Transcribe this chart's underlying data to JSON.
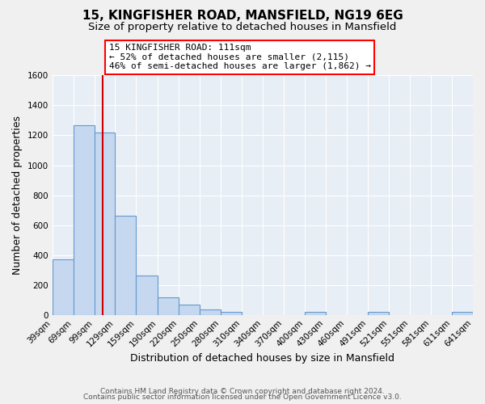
{
  "title": "15, KINGFISHER ROAD, MANSFIELD, NG19 6EG",
  "subtitle": "Size of property relative to detached houses in Mansfield",
  "xlabel": "Distribution of detached houses by size in Mansfield",
  "ylabel": "Number of detached properties",
  "bar_left_edges": [
    39,
    69,
    99,
    129,
    159,
    190,
    220,
    250,
    280,
    310,
    340,
    370,
    400,
    430,
    460,
    491,
    521,
    551,
    581,
    611
  ],
  "bar_widths": [
    30,
    30,
    30,
    30,
    31,
    30,
    30,
    30,
    30,
    30,
    30,
    30,
    30,
    30,
    31,
    30,
    30,
    30,
    30,
    30
  ],
  "bar_heights": [
    370,
    1270,
    1220,
    660,
    265,
    115,
    68,
    35,
    20,
    0,
    0,
    0,
    20,
    0,
    0,
    20,
    0,
    0,
    0,
    20
  ],
  "bar_color": "#c5d8f0",
  "bar_edge_color": "#6699cc",
  "x_tick_labels": [
    "39sqm",
    "69sqm",
    "99sqm",
    "129sqm",
    "159sqm",
    "190sqm",
    "220sqm",
    "250sqm",
    "280sqm",
    "310sqm",
    "340sqm",
    "370sqm",
    "400sqm",
    "430sqm",
    "460sqm",
    "491sqm",
    "521sqm",
    "551sqm",
    "581sqm",
    "611sqm",
    "641sqm"
  ],
  "ylim": [
    0,
    1600
  ],
  "yticks": [
    0,
    200,
    400,
    600,
    800,
    1000,
    1200,
    1400,
    1600
  ],
  "property_value_sqm": 111,
  "vline_color": "#cc0000",
  "annotation_line1": "15 KINGFISHER ROAD: 111sqm",
  "annotation_line2": "← 52% of detached houses are smaller (2,115)",
  "annotation_line3": "46% of semi-detached houses are larger (1,862) →",
  "footer_text1": "Contains HM Land Registry data © Crown copyright and database right 2024.",
  "footer_text2": "Contains public sector information licensed under the Open Government Licence v3.0.",
  "background_color": "#f0f0f0",
  "plot_bg_color": "#e8eef5",
  "grid_color": "#ffffff",
  "title_fontsize": 11,
  "subtitle_fontsize": 9.5,
  "axis_label_fontsize": 9,
  "tick_fontsize": 7.5,
  "annotation_fontsize": 8,
  "footer_fontsize": 6.5
}
